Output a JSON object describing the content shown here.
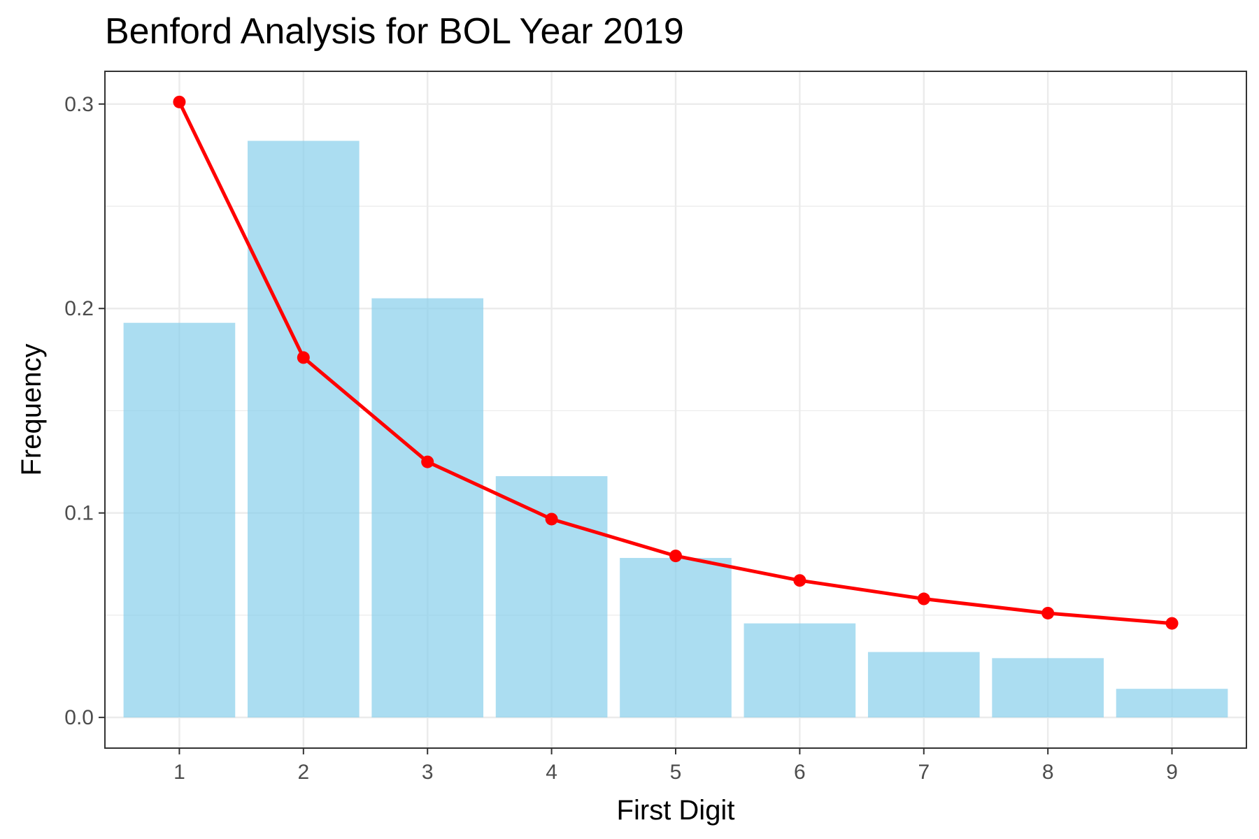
{
  "chart_data": {
    "type": "bar",
    "title": "Benford Analysis for BOL Year 2019",
    "xlabel": "First Digit",
    "ylabel": "Frequency",
    "categories": [
      "1",
      "2",
      "3",
      "4",
      "5",
      "6",
      "7",
      "8",
      "9"
    ],
    "series": [
      {
        "type": "bar",
        "values": [
          0.193,
          0.282,
          0.205,
          0.118,
          0.078,
          0.046,
          0.032,
          0.029,
          0.014
        ],
        "color": "#87CEEB"
      },
      {
        "type": "line",
        "values": [
          0.301,
          0.176,
          0.125,
          0.097,
          0.079,
          0.067,
          0.058,
          0.051,
          0.046
        ],
        "color": "#FF0000"
      }
    ],
    "ylim": [
      -0.015,
      0.316
    ],
    "yticks": [
      "0.0",
      "0.1",
      "0.2",
      "0.3"
    ],
    "ytick_values": [
      0.0,
      0.1,
      0.2,
      0.3
    ],
    "grid": true,
    "legend": "none"
  }
}
